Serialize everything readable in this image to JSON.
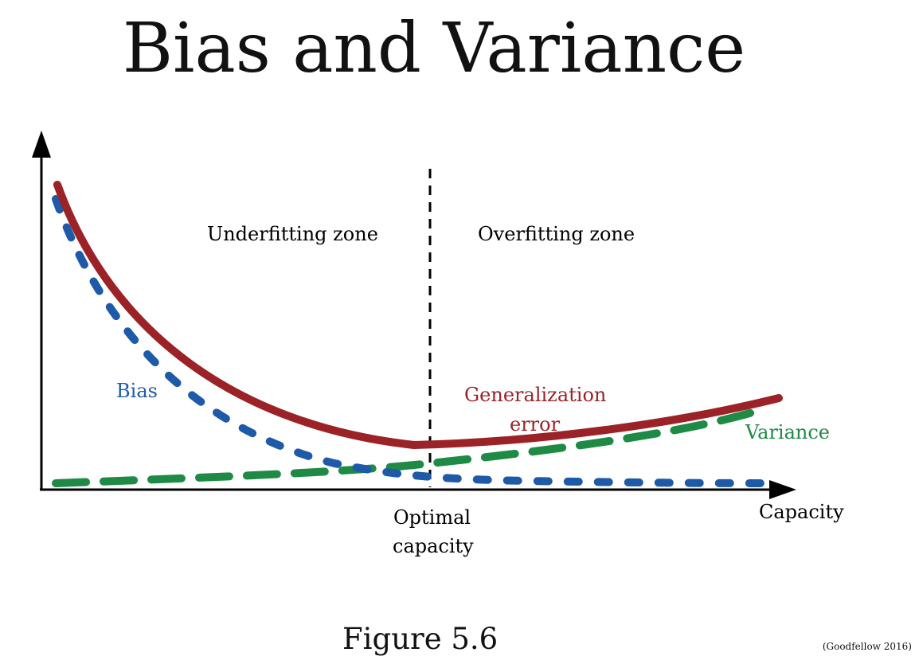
{
  "title": "Bias and Variance",
  "caption": "Figure 5.6",
  "credit": "(Goodfellow 2016)",
  "zones": {
    "underfitting": "Underfitting zone",
    "overfitting": "Overfitting zone"
  },
  "axis": {
    "x_label": "Capacity",
    "optimal_line1": "Optimal",
    "optimal_line2": "capacity"
  },
  "curves": {
    "bias_label": "Bias",
    "generalization_line1": "Generalization",
    "generalization_line2": "error",
    "variance_label": "Variance"
  },
  "colors": {
    "generalization": "#9b2226",
    "bias": "#1f5aa8",
    "variance": "#1e8a45",
    "axis": "#000000"
  }
}
